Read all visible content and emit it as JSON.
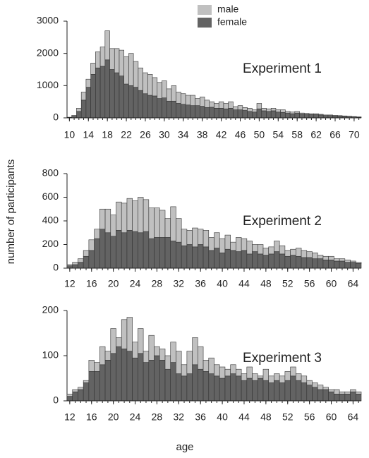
{
  "chart_data": [
    {
      "type": "bar",
      "stacked": true,
      "annotation": "Experiment 1",
      "xlim": [
        9.5,
        71.5
      ],
      "xticks": [
        10,
        14,
        18,
        22,
        26,
        30,
        34,
        38,
        42,
        46,
        50,
        54,
        58,
        62,
        66,
        70
      ],
      "ylim": [
        0,
        3000
      ],
      "yticks": [
        0,
        1000,
        2000,
        3000
      ],
      "x": [
        10,
        11,
        12,
        13,
        14,
        15,
        16,
        17,
        18,
        19,
        20,
        21,
        22,
        23,
        24,
        25,
        26,
        27,
        28,
        29,
        30,
        31,
        32,
        33,
        34,
        35,
        36,
        37,
        38,
        39,
        40,
        41,
        42,
        43,
        44,
        45,
        46,
        47,
        48,
        49,
        50,
        51,
        52,
        53,
        54,
        55,
        56,
        57,
        58,
        59,
        60,
        61,
        62,
        63,
        64,
        65,
        66,
        67,
        68,
        69,
        70,
        71
      ],
      "series": [
        {
          "name": "female",
          "color": "#636363",
          "values": [
            10,
            50,
            200,
            550,
            950,
            1350,
            1550,
            1600,
            1800,
            1500,
            1400,
            1300,
            1050,
            1000,
            950,
            850,
            750,
            700,
            680,
            600,
            620,
            520,
            520,
            450,
            420,
            400,
            380,
            380,
            360,
            320,
            330,
            300,
            300,
            280,
            300,
            250,
            250,
            230,
            200,
            180,
            280,
            220,
            200,
            220,
            180,
            170,
            150,
            130,
            150,
            120,
            110,
            100,
            100,
            90,
            70,
            70,
            60,
            55,
            50,
            40,
            30,
            20
          ]
        },
        {
          "name": "male",
          "color": "#c0c0c0",
          "values": [
            10,
            30,
            100,
            250,
            250,
            350,
            500,
            600,
            900,
            650,
            750,
            800,
            850,
            1000,
            800,
            700,
            650,
            650,
            570,
            500,
            530,
            380,
            480,
            350,
            330,
            300,
            320,
            220,
            290,
            230,
            170,
            150,
            200,
            170,
            200,
            100,
            130,
            90,
            100,
            70,
            170,
            80,
            80,
            80,
            70,
            80,
            50,
            50,
            50,
            30,
            30,
            30,
            30,
            20,
            20,
            20,
            20,
            15,
            10,
            10,
            10,
            10
          ]
        }
      ]
    },
    {
      "type": "bar",
      "stacked": true,
      "annotation": "Experiment 2",
      "ylabel": "number of participants",
      "xlim": [
        11.5,
        65.5
      ],
      "xticks": [
        12,
        16,
        20,
        24,
        28,
        32,
        36,
        40,
        44,
        48,
        52,
        56,
        60,
        64
      ],
      "ylim": [
        0,
        800
      ],
      "yticks": [
        0,
        200,
        400,
        600,
        800
      ],
      "x": [
        12,
        13,
        14,
        15,
        16,
        17,
        18,
        19,
        20,
        21,
        22,
        23,
        24,
        25,
        26,
        27,
        28,
        29,
        30,
        31,
        32,
        33,
        34,
        35,
        36,
        37,
        38,
        39,
        40,
        41,
        42,
        43,
        44,
        45,
        46,
        47,
        48,
        49,
        50,
        51,
        52,
        53,
        54,
        55,
        56,
        57,
        58,
        59,
        60,
        61,
        62,
        63,
        64,
        65
      ],
      "series": [
        {
          "name": "female",
          "color": "#636363",
          "values": [
            20,
            30,
            50,
            100,
            150,
            250,
            330,
            300,
            270,
            320,
            300,
            320,
            310,
            300,
            310,
            250,
            260,
            260,
            260,
            230,
            220,
            190,
            200,
            180,
            200,
            180,
            150,
            170,
            130,
            160,
            150,
            140,
            150,
            120,
            140,
            120,
            110,
            120,
            140,
            120,
            100,
            110,
            100,
            90,
            90,
            80,
            80,
            70,
            70,
            60,
            60,
            50,
            50,
            40
          ]
        },
        {
          "name": "male",
          "color": "#c0c0c0",
          "values": [
            10,
            20,
            30,
            50,
            90,
            80,
            170,
            200,
            180,
            240,
            250,
            270,
            260,
            300,
            270,
            260,
            250,
            230,
            160,
            290,
            200,
            140,
            120,
            160,
            130,
            140,
            110,
            130,
            120,
            120,
            70,
            120,
            100,
            110,
            60,
            80,
            60,
            60,
            90,
            70,
            50,
            50,
            70,
            60,
            50,
            50,
            30,
            30,
            30,
            20,
            20,
            20,
            10,
            10
          ]
        }
      ]
    },
    {
      "type": "bar",
      "stacked": true,
      "annotation": "Experiment 3",
      "xlabel": "age",
      "xlim": [
        11.5,
        65.5
      ],
      "xticks": [
        12,
        16,
        20,
        24,
        28,
        32,
        36,
        40,
        44,
        48,
        52,
        56,
        60,
        64
      ],
      "ylim": [
        0,
        200
      ],
      "yticks": [
        0,
        100,
        200
      ],
      "x": [
        12,
        13,
        14,
        15,
        16,
        17,
        18,
        19,
        20,
        21,
        22,
        23,
        24,
        25,
        26,
        27,
        28,
        29,
        30,
        31,
        32,
        33,
        34,
        35,
        36,
        37,
        38,
        39,
        40,
        41,
        42,
        43,
        44,
        45,
        46,
        47,
        48,
        49,
        50,
        51,
        52,
        53,
        54,
        55,
        56,
        57,
        58,
        59,
        60,
        61,
        62,
        63,
        64,
        65
      ],
      "series": [
        {
          "name": "female",
          "color": "#636363",
          "values": [
            10,
            20,
            25,
            40,
            65,
            65,
            80,
            90,
            105,
            120,
            115,
            110,
            95,
            105,
            85,
            90,
            100,
            90,
            70,
            85,
            60,
            55,
            60,
            80,
            70,
            65,
            60,
            55,
            50,
            55,
            60,
            55,
            45,
            50,
            45,
            50,
            45,
            40,
            45,
            40,
            45,
            55,
            45,
            40,
            35,
            30,
            25,
            25,
            20,
            15,
            15,
            15,
            20,
            15
          ]
        },
        {
          "name": "male",
          "color": "#c0c0c0",
          "values": [
            5,
            5,
            5,
            5,
            25,
            20,
            40,
            20,
            55,
            20,
            65,
            75,
            35,
            55,
            25,
            55,
            20,
            25,
            30,
            45,
            50,
            25,
            50,
            60,
            50,
            25,
            35,
            25,
            25,
            15,
            20,
            15,
            15,
            25,
            15,
            5,
            25,
            15,
            15,
            15,
            20,
            20,
            15,
            15,
            10,
            10,
            10,
            5,
            5,
            10,
            5,
            5,
            5,
            5
          ]
        }
      ]
    }
  ]
}
